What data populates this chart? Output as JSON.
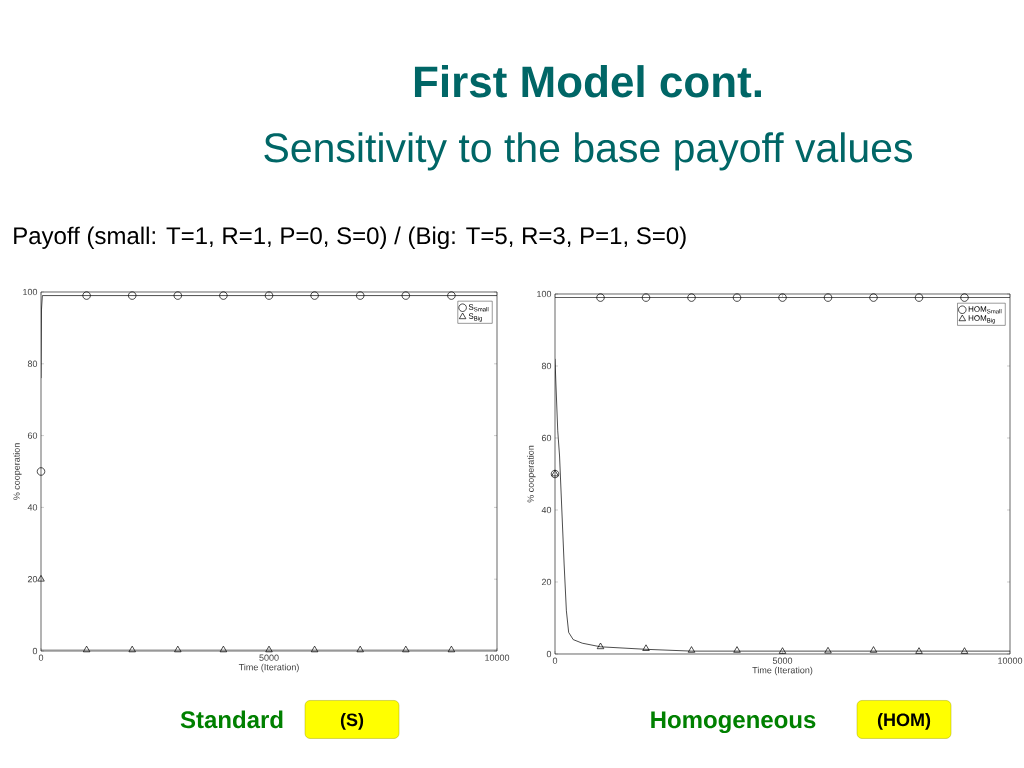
{
  "chart_data": [
    {
      "type": "line",
      "title": "First Model cont.",
      "subtitle": "Sensitivity to the base payoff values",
      "xlabel": "Time (Iteration)",
      "ylabel": "% cooperation",
      "xlim": [
        0,
        10000
      ],
      "ylim": [
        0,
        100
      ],
      "xticks": [
        0,
        5000,
        10000
      ],
      "yticks": [
        0,
        20,
        40,
        60,
        80,
        100
      ],
      "grid": false,
      "legend": "top right",
      "annotations": [
        "Payoff (small: T=1, R=1, P=0, S=0) / (Big: T=5, R=3, P=1, S=0)",
        "Standard",
        "(S)"
      ],
      "series": [
        {
          "color": "#000000",
          "x": [
            0,
            10,
            30,
            10000
          ],
          "values": [
            76,
            95,
            99,
            99
          ]
        },
        {
          "color": "#000000",
          "x": [
            0,
            10000
          ],
          "values": [
            0.3,
            0.3
          ]
        },
        {
          "type": "scatter",
          "name": "S$_{Small}$",
          "marker": "circle",
          "color": "#000000",
          "x": [
            0,
            1000,
            2000,
            3000,
            4000,
            5000,
            6000,
            7000,
            8000,
            9000
          ],
          "values": [
            50,
            99,
            99,
            99,
            99,
            99,
            99,
            99,
            99,
            99
          ]
        },
        {
          "type": "scatter",
          "name": "S$_{Big}$",
          "marker": "triangle",
          "color": "#000000",
          "x": [
            0,
            1000,
            2000,
            3000,
            4000,
            5000,
            6000,
            7000,
            8000,
            9000
          ],
          "values": [
            20,
            0.3,
            0.3,
            0.3,
            0.3,
            0.3,
            0.3,
            0.3,
            0.3,
            0.3
          ]
        }
      ]
    },
    {
      "type": "line",
      "xlabel": "Time (Iteration)",
      "ylabel": "% cooperation",
      "xlim": [
        0,
        10000
      ],
      "ylim": [
        0,
        100
      ],
      "xticks": [
        0,
        5000,
        10000
      ],
      "yticks": [
        0,
        20,
        40,
        60,
        80,
        100
      ],
      "grid": false,
      "legend": "top right",
      "annotations": [
        "Homogeneous",
        "(HOM)"
      ],
      "series": [
        {
          "color": "#000000",
          "x": [
            0,
            10000
          ],
          "values": [
            99,
            99
          ]
        },
        {
          "color": "#000000",
          "x": [
            0,
            20,
            60,
            100,
            150,
            200,
            250,
            300,
            400,
            600,
            1000,
            2000,
            3000,
            10000
          ],
          "values": [
            82,
            75,
            62,
            55,
            40,
            25,
            12,
            6,
            4,
            3,
            2,
            1.3,
            0.8,
            0.8
          ]
        },
        {
          "type": "scatter",
          "name": "HOM$_{Small}$",
          "marker": "circle",
          "color": "#000000",
          "x": [
            0,
            1000,
            2000,
            3000,
            4000,
            5000,
            6000,
            7000,
            8000,
            9000
          ],
          "values": [
            50,
            99,
            99,
            99,
            99,
            99,
            99,
            99,
            99,
            99
          ]
        },
        {
          "type": "scatter",
          "name": "HOM$_{Big}$",
          "marker": "triangle",
          "color": "#000000",
          "x": [
            0,
            1000,
            2000,
            3000,
            4000,
            5000,
            6000,
            7000,
            8000,
            9000
          ],
          "values": [
            50,
            2,
            1.5,
            1,
            1,
            0.7,
            0.8,
            1,
            0.7,
            0.7
          ]
        }
      ]
    }
  ]
}
